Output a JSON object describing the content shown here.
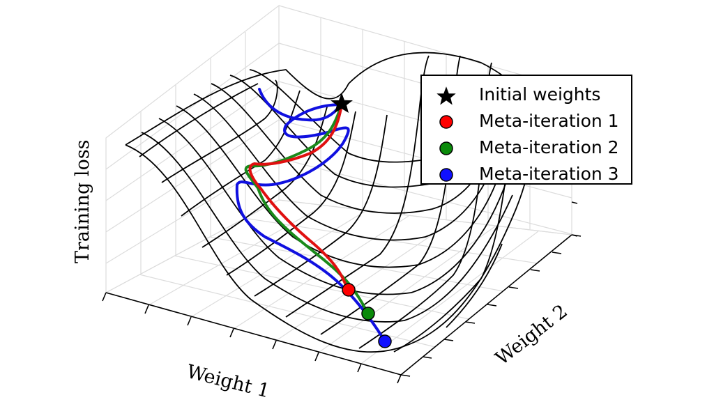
{
  "chart_data": {
    "type": "surface3d",
    "xlabel": "Weight 1",
    "ylabel": "Weight 2",
    "zlabel": "Training loss",
    "grid": true,
    "legend_position": "top-right",
    "legend": [
      {
        "label": "Initial weights",
        "marker": "star",
        "color": "#000000"
      },
      {
        "label": "Meta-iteration 1",
        "marker": "circle",
        "color": "#ff0000"
      },
      {
        "label": "Meta-iteration 2",
        "marker": "circle",
        "color": "#008000"
      },
      {
        "label": "Meta-iteration 3",
        "marker": "circle",
        "color": "#0000ff"
      }
    ],
    "initial_weights": {
      "w1": 0.62,
      "w2": 0.75
    },
    "series": [
      {
        "name": "Meta-iteration 1",
        "color": "#ff0000",
        "path": [
          [
            0.62,
            0.75
          ],
          [
            0.55,
            0.55
          ],
          [
            0.5,
            0.35
          ],
          [
            0.55,
            0.2
          ],
          [
            0.58,
            0.1
          ]
        ]
      },
      {
        "name": "Meta-iteration 2",
        "color": "#008000",
        "path": [
          [
            0.62,
            0.75
          ],
          [
            0.55,
            0.55
          ],
          [
            0.48,
            0.35
          ],
          [
            0.58,
            0.18
          ],
          [
            0.62,
            0.05
          ]
        ]
      },
      {
        "name": "Meta-iteration 3",
        "color": "#0000ff",
        "path": [
          [
            0.62,
            0.75
          ],
          [
            0.45,
            0.6
          ],
          [
            0.4,
            0.35
          ],
          [
            0.6,
            0.1
          ],
          [
            0.66,
            0.0
          ]
        ]
      }
    ]
  }
}
